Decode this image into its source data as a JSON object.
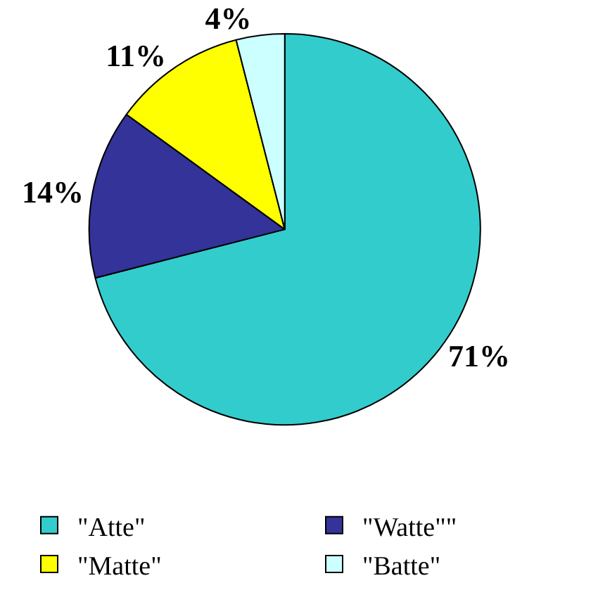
{
  "chart_data": {
    "type": "pie",
    "categories": [
      "\"Atte\"",
      "\"Watte\"\"",
      "\"Matte\"",
      "\"Batte\""
    ],
    "values": [
      71,
      14,
      11,
      4
    ],
    "colors": [
      "#33cccc",
      "#333399",
      "#ffff00",
      "#ccffff"
    ],
    "value_labels": [
      "71%",
      "14%",
      "11%",
      "4%"
    ],
    "legend": "bottom"
  }
}
